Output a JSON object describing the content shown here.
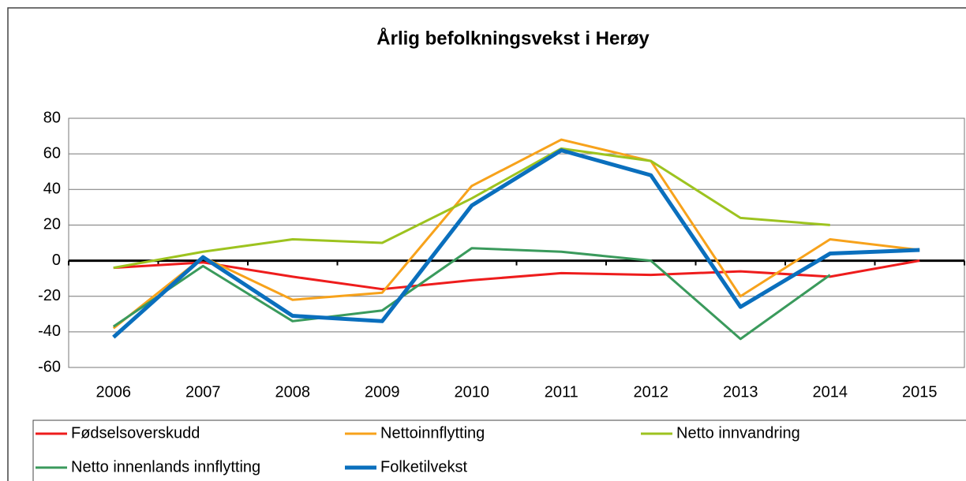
{
  "chart_data": {
    "type": "line",
    "title": "Årlig befolkningsvekst i Herøy",
    "categories": [
      "2006",
      "2007",
      "2008",
      "2009",
      "2010",
      "2011",
      "2012",
      "2013",
      "2014",
      "2015"
    ],
    "series": [
      {
        "name": "Fødselsoverskudd",
        "color": "#ee1c1c",
        "values": [
          -4,
          -1,
          -9,
          -16,
          -11,
          -7,
          -8,
          -6,
          -9,
          0
        ]
      },
      {
        "name": "Nettoinnflytting",
        "color": "#f7a21b",
        "values": [
          -38,
          2,
          -22,
          -18,
          42,
          68,
          56,
          -20,
          12,
          6
        ]
      },
      {
        "name": "Netto innvandring",
        "color": "#9dc31f",
        "values": [
          -4,
          5,
          12,
          10,
          35,
          63,
          56,
          24,
          20,
          null
        ]
      },
      {
        "name": "Netto innenlands innflytting",
        "color": "#3a9a5c",
        "values": [
          -37,
          -3,
          -34,
          -28,
          7,
          5,
          0,
          -44,
          -8,
          null
        ]
      },
      {
        "name": "Folketilvekst",
        "color": "#0a6fbd",
        "values": [
          -43,
          2,
          -31,
          -34,
          31,
          62,
          48,
          -26,
          4,
          6
        ]
      }
    ],
    "ylim": [
      -60,
      80
    ],
    "yticks": [
      -60,
      -40,
      -20,
      0,
      20,
      40,
      60,
      80
    ],
    "grid": true,
    "legend": "bottom"
  }
}
